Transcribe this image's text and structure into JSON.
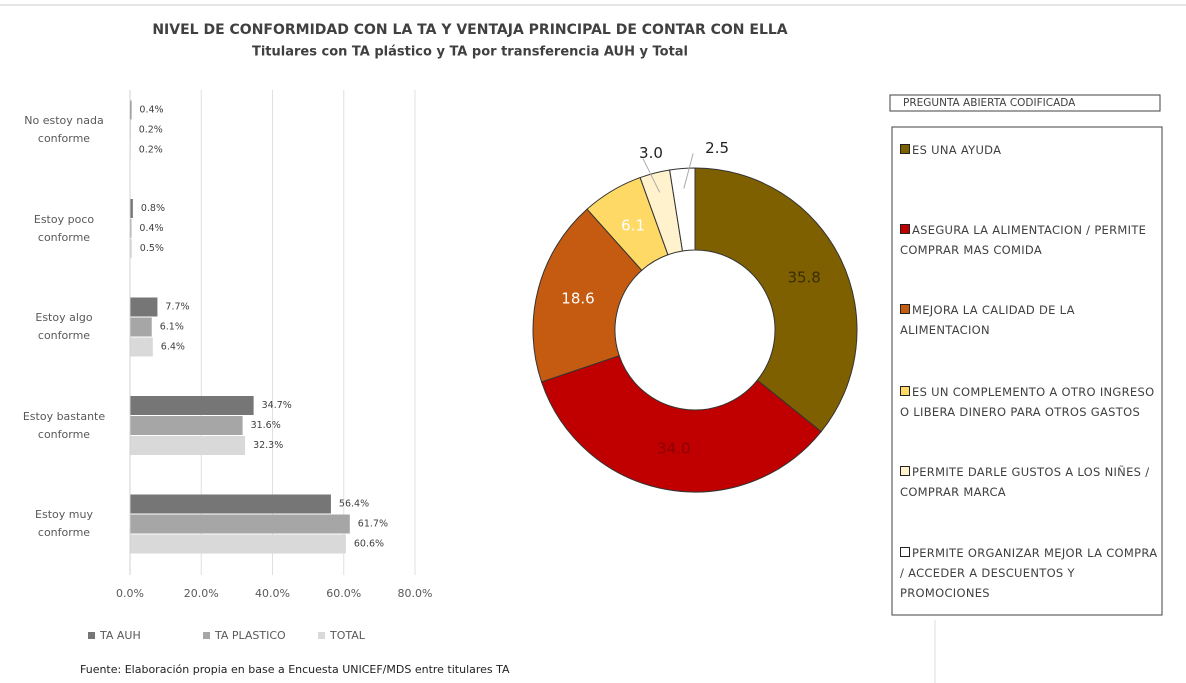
{
  "title": "NIVEL DE CONFORMIDAD CON LA TA Y VENTAJA PRINCIPAL DE CONTAR CON ELLA",
  "subtitle": "Titulares con TA plástico y TA por transferencia AUH y Total",
  "source": "Fuente: Elaboración propia en base a Encuesta UNICEF/MDS entre titulares TA",
  "chart_data": [
    {
      "type": "hbar",
      "categories": [
        "No estoy nada conforme",
        "Estoy poco conforme",
        "Estoy algo conforme",
        "Estoy bastante conforme",
        "Estoy muy conforme"
      ],
      "series": [
        {
          "name": "TA AUH",
          "color": "#767676",
          "values": [
            0.4,
            0.8,
            7.7,
            34.7,
            56.4
          ],
          "value_labels": [
            "0.4%",
            "0.8%",
            "7.7%",
            "34.7%",
            "56.4%"
          ]
        },
        {
          "name": "TA PLASTICO",
          "color": "#a6a6a6",
          "values": [
            0.2,
            0.4,
            6.1,
            31.6,
            61.7
          ],
          "value_labels": [
            "0.2%",
            "0.4%",
            "6.1%",
            "31.6%",
            "61.7%"
          ]
        },
        {
          "name": "TOTAL",
          "color": "#d9d9d9",
          "values": [
            0.2,
            0.5,
            6.4,
            32.3,
            60.6
          ],
          "value_labels": [
            "0.2%",
            "0.5%",
            "6.4%",
            "32.3%",
            "60.6%"
          ]
        }
      ],
      "xlim": [
        0,
        80
      ],
      "xticks": [
        {
          "value": 0,
          "label": "0.0%"
        },
        {
          "value": 20,
          "label": "20.0%"
        },
        {
          "value": 40,
          "label": "40.0%"
        },
        {
          "value": 60,
          "label": "60.0%"
        },
        {
          "value": 80,
          "label": "80.0%"
        }
      ],
      "grid": true,
      "legend": "bottom"
    },
    {
      "type": "donut",
      "legend_title": "PREGUNTA ABIERTA CODIFICADA",
      "categories": [
        "ES UNA AYUDA",
        "ASEGURA LA ALIMENTACION / PERMITE COMPRAR MAS COMIDA",
        "MEJORA LA CALIDAD DE LA ALIMENTACION",
        "ES UN COMPLEMENTO A OTRO INGRESO O LIBERA DINERO PARA OTROS GASTOS",
        "PERMITE DARLE GUSTOS A LOS NIÑES / COMPRAR MARCA",
        "PERMITE ORGANIZAR MEJOR LA COMPRA / ACCEDER A DESCUENTOS Y PROMOCIONES"
      ],
      "values": [
        35.8,
        34.0,
        18.6,
        6.1,
        3.0,
        2.5
      ],
      "value_labels": [
        "35.8",
        "34.0",
        "18.6",
        "6.1",
        "3.0",
        "2.5"
      ],
      "colors": [
        "#7f6000",
        "#c00000",
        "#c55a11",
        "#ffd966",
        "#fff2cc",
        "#ffffff"
      ],
      "legend": "right"
    }
  ]
}
